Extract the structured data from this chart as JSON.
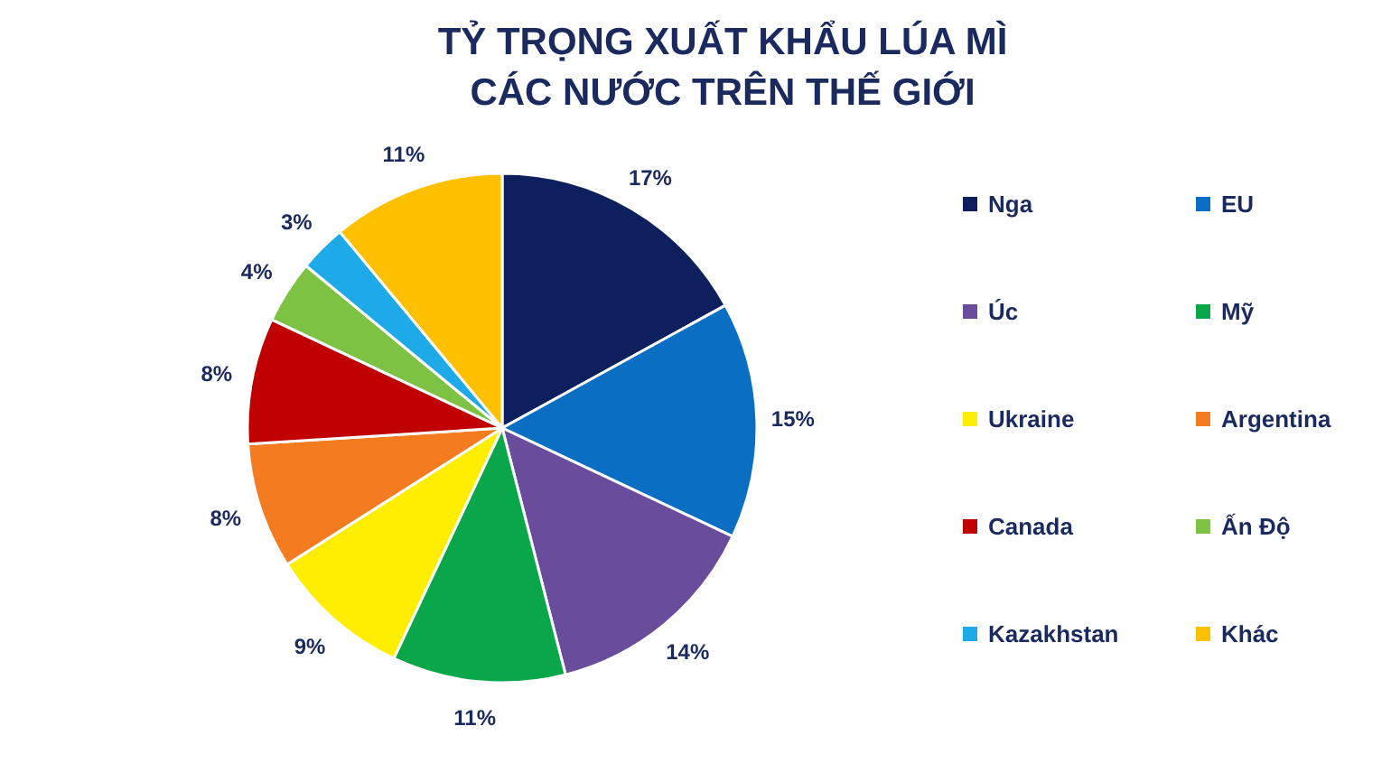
{
  "chart_data": {
    "type": "pie",
    "title": "TỶ TRỌNG XUẤT KHẨU LÚA MÌ\nCÁC NƯỚC TRÊN THẾ GIỚI",
    "categories": [
      "Nga",
      "EU",
      "Úc",
      "Mỹ",
      "Ukraine",
      "Argentina",
      "Canada",
      "Ấn Độ",
      "Kazakhstan",
      "Khác"
    ],
    "values": [
      17,
      15,
      14,
      11,
      9,
      8,
      8,
      4,
      3,
      11
    ],
    "colors": [
      "#0d1f5c",
      "#0a6fc2",
      "#6a4c9c",
      "#0aa64a",
      "#ffee00",
      "#f47b20",
      "#c00000",
      "#7dc242",
      "#1ea9e8",
      "#ffc000"
    ],
    "value_labels": [
      "17%",
      "15%",
      "14%",
      "11%",
      "9%",
      "8%",
      "8%",
      "4%",
      "3%",
      "11%"
    ],
    "legend": "right"
  }
}
